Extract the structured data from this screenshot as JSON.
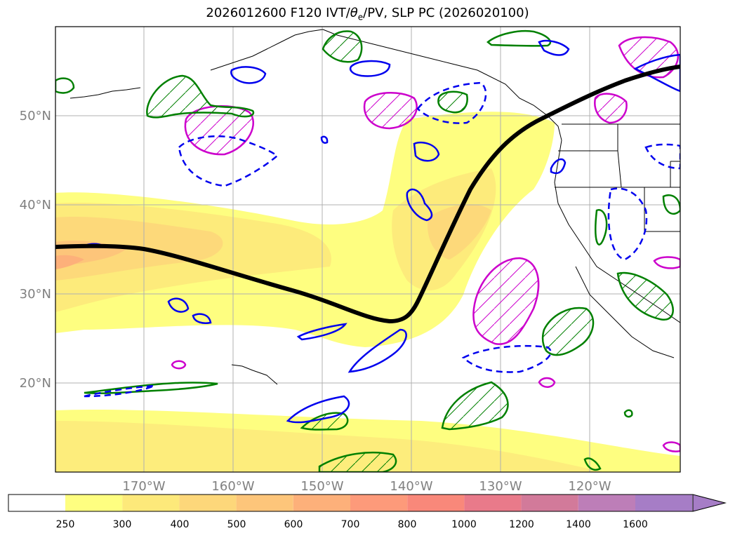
{
  "title": {
    "prefix": "2026012600 F120 IVT/",
    "theta": "θ",
    "sub": "e",
    "suffix": "/PV, SLP PC (2026020100)"
  },
  "map": {
    "lat_labels": [
      "50°N",
      "40°N",
      "30°N",
      "20°N"
    ],
    "lon_labels": [
      "170°W",
      "160°W",
      "150°W",
      "140°W",
      "130°W",
      "120°W"
    ]
  },
  "colorbar": {
    "ticks": [
      "250",
      "300",
      "400",
      "500",
      "600",
      "700",
      "800",
      "1000",
      "1200",
      "1400",
      "1600"
    ],
    "colors": [
      "#ffffff",
      "#fefe80",
      "#fde97a",
      "#fdd77a",
      "#fdc57a",
      "#fdb07a",
      "#fd9a7a",
      "#f9887a",
      "#e97a8a",
      "#d27a9a",
      "#bd7eb8",
      "#a67dc6"
    ]
  }
}
